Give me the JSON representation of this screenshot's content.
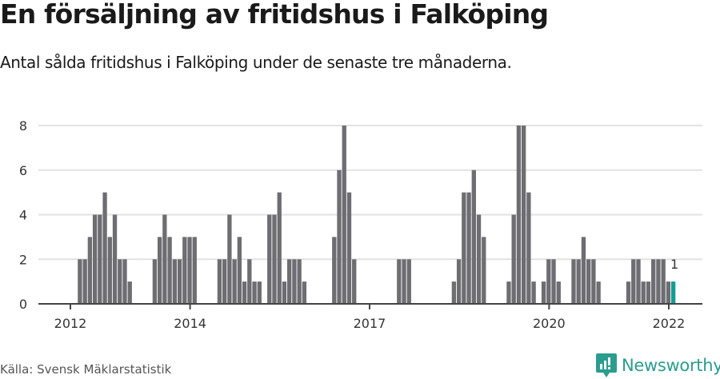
{
  "header": {
    "title": "En försäljning av fritidshus i Falköping",
    "subtitle": "Antal sålda fritidshus i Falköping under de senaste tre månaderna."
  },
  "footer": {
    "source": "Källa: Svensk Mäklarstatistik",
    "brand": "Newsworthy",
    "brand_color": "#2a9d8f"
  },
  "chart_data": {
    "type": "bar",
    "title": "En försäljning av fritidshus i Falköping",
    "subtitle": "Antal sålda fritidshus i Falköping under de senaste tre månaderna.",
    "xlabel": "",
    "ylabel": "",
    "ylim": [
      0,
      8
    ],
    "yticks": [
      0,
      2,
      4,
      6,
      8
    ],
    "xticks": [
      {
        "label": "2012",
        "index": 0
      },
      {
        "label": "2014",
        "index": 24
      },
      {
        "label": "2017",
        "index": 60
      },
      {
        "label": "2020",
        "index": 96
      },
      {
        "label": "2022",
        "index": 120
      }
    ],
    "grid": true,
    "start": "2012-01",
    "frequency": "monthly",
    "bar_color": "#6e6d72",
    "highlight_color": "#139e94",
    "highlight_index": 120,
    "highlight_label": "1",
    "values": [
      0,
      2,
      2,
      3,
      4,
      4,
      5,
      3,
      4,
      2,
      2,
      1,
      0,
      0,
      0,
      0,
      2,
      3,
      4,
      3,
      2,
      2,
      3,
      3,
      3,
      0,
      0,
      0,
      0,
      2,
      2,
      4,
      2,
      3,
      1,
      2,
      1,
      1,
      0,
      4,
      4,
      5,
      1,
      2,
      2,
      2,
      1,
      0,
      0,
      0,
      0,
      0,
      3,
      6,
      8,
      5,
      2,
      0,
      0,
      0,
      0,
      0,
      0,
      0,
      0,
      2,
      2,
      2,
      0,
      0,
      0,
      0,
      0,
      0,
      0,
      0,
      1,
      2,
      5,
      5,
      6,
      4,
      3,
      0,
      0,
      0,
      0,
      1,
      4,
      8,
      8,
      5,
      1,
      0,
      1,
      2,
      2,
      1,
      0,
      0,
      2,
      2,
      3,
      2,
      2,
      1,
      0,
      0,
      0,
      0,
      0,
      1,
      2,
      2,
      1,
      1,
      2,
      2,
      2,
      1,
      1
    ]
  }
}
